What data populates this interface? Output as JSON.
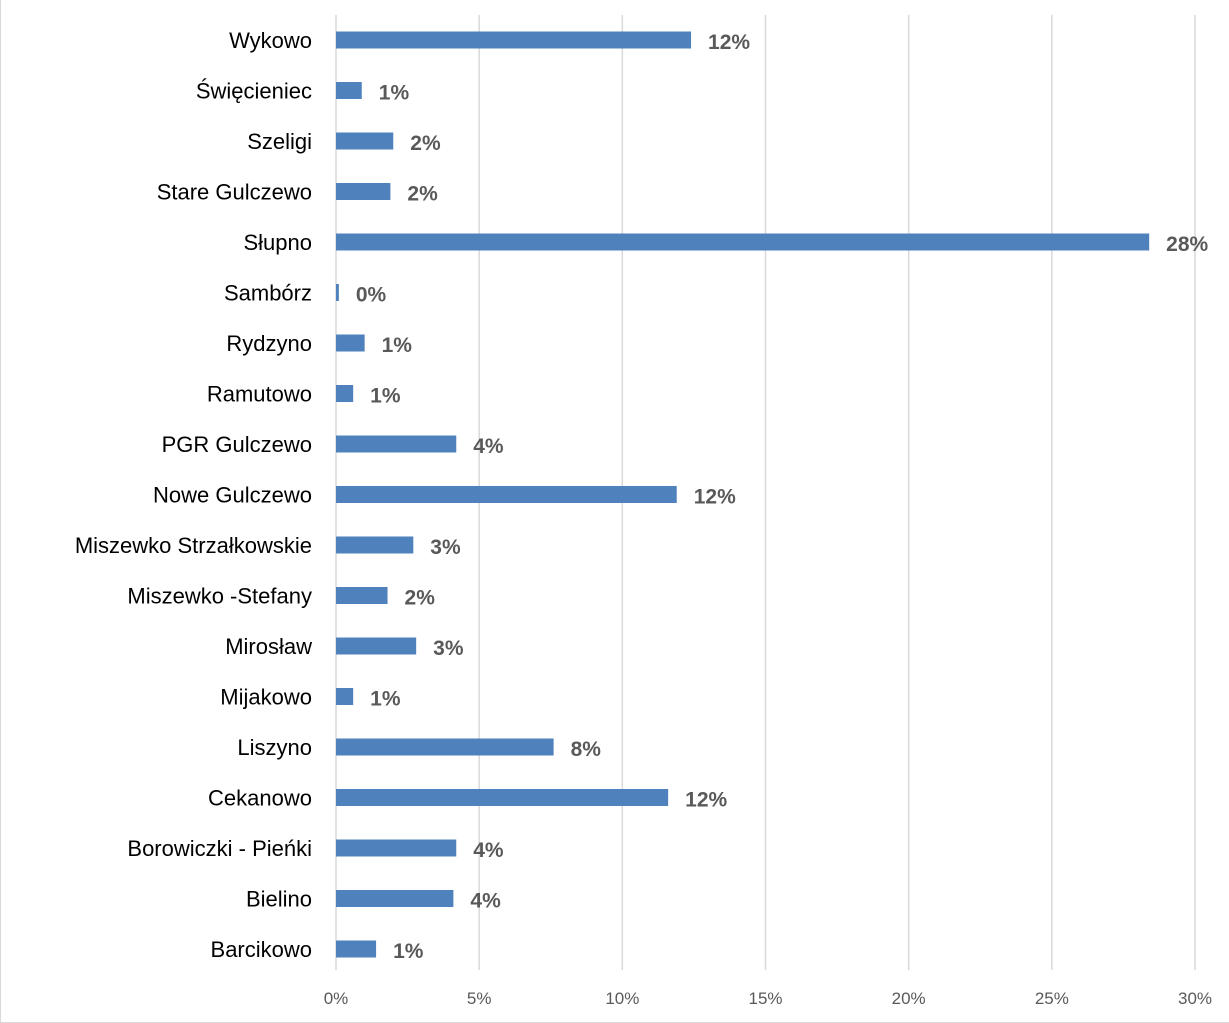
{
  "colors": {
    "bar": "#4f81bd",
    "grid": "#d9d9d9",
    "label": "#595959",
    "category": "#000000"
  },
  "chart_data": {
    "type": "bar",
    "orientation": "horizontal",
    "title": "",
    "xlabel": "",
    "ylabel": "",
    "categories": [
      "Wykowo",
      "Święcieniec",
      "Szeligi",
      "Stare Gulczewo",
      "Słupno",
      "Sambórz",
      "Rydzyno",
      "Ramutowo",
      "PGR Gulczewo",
      "Nowe Gulczewo",
      "Miszewko Strzałkowskie",
      "Miszewko -Stefany",
      "Mirosław",
      "Mijakowo",
      "Liszyno",
      "Cekanowo",
      "Borowiczki - Pieńki",
      "Bielino",
      "Barcikowo"
    ],
    "values": [
      12.4,
      0.9,
      2.0,
      1.9,
      28.4,
      0.1,
      1.0,
      0.6,
      4.2,
      11.9,
      2.7,
      1.8,
      2.8,
      0.6,
      7.6,
      11.6,
      4.2,
      4.1,
      1.4
    ],
    "data_labels": [
      "12%",
      "1%",
      "2%",
      "2%",
      "28%",
      "0%",
      "1%",
      "1%",
      "4%",
      "12%",
      "3%",
      "2%",
      "3%",
      "1%",
      "8%",
      "12%",
      "4%",
      "4%",
      "1%"
    ],
    "xlim": [
      0,
      30
    ],
    "x_ticks": [
      "0%",
      "5%",
      "10%",
      "15%",
      "20%",
      "25%",
      "30%"
    ],
    "grid": true,
    "legend": "none"
  }
}
